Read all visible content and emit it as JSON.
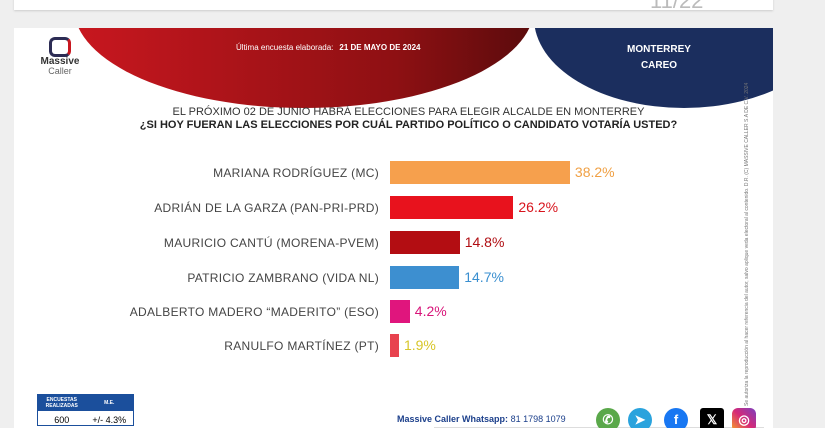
{
  "viewer": {
    "page_indicator": "11/22"
  },
  "header": {
    "logo_line1": "Massive",
    "logo_line2": "Caller",
    "survey_label": "Última encuesta elaborada:",
    "survey_date": "21 DE MAYO DE 2024",
    "city": "MONTERREY",
    "subtitle": "CAREO"
  },
  "question": {
    "line1": "EL PRÓXIMO 02 DE JUNIO HABRÁ ELECCIONES PARA ELEGIR ALCALDE EN MONTERREY",
    "line2": "¿SI HOY FUERAN LAS ELECCIONES POR CUÁL PARTIDO POLÍTICO O CANDIDATO VOTARÍA USTED?"
  },
  "chart_data": {
    "type": "bar",
    "orientation": "horizontal",
    "categories": [
      "MARIANA RODRÍGUEZ (MC)",
      "ADRIÁN DE LA GARZA  (PAN-PRI-PRD)",
      "MAURICIO CANTÚ (MORENA-PVEM)",
      "PATRICIO ZAMBRANO (VIDA NL)",
      "ADALBERTO MADERO “MADERITO” (ESO)",
      "RANULFO MARTÍNEZ (PT)"
    ],
    "values": [
      38.2,
      26.2,
      14.8,
      14.7,
      4.2,
      1.9
    ],
    "labels": [
      "38.2%",
      "26.2%",
      "14.8%",
      "14.7%",
      "4.2%",
      "1.9%"
    ],
    "colors": [
      "#f6a04d",
      "#e8121d",
      "#b30d12",
      "#3d8fd0",
      "#e0157d",
      "#e8424e"
    ],
    "label_colors": [
      "#f0a044",
      "#d8141d",
      "#b00d12",
      "#3a8fd0",
      "#d8157a",
      "#d8c628"
    ]
  },
  "copyright": "Se autoriza la reproducción al hacer referencia del autor, salvo aplique veda electoral al contenido.  D.R. (C) MASSIVE CALLER S.A DE C.V. 2024",
  "footer": {
    "table_headers": [
      "ENCUESTAS REALIZADAS",
      "M.E."
    ],
    "table_values": [
      "600",
      "+/- 4.3%"
    ],
    "whatsapp_label": "Massive Caller Whatsapp:",
    "whatsapp_number": "81 1798 1079"
  }
}
